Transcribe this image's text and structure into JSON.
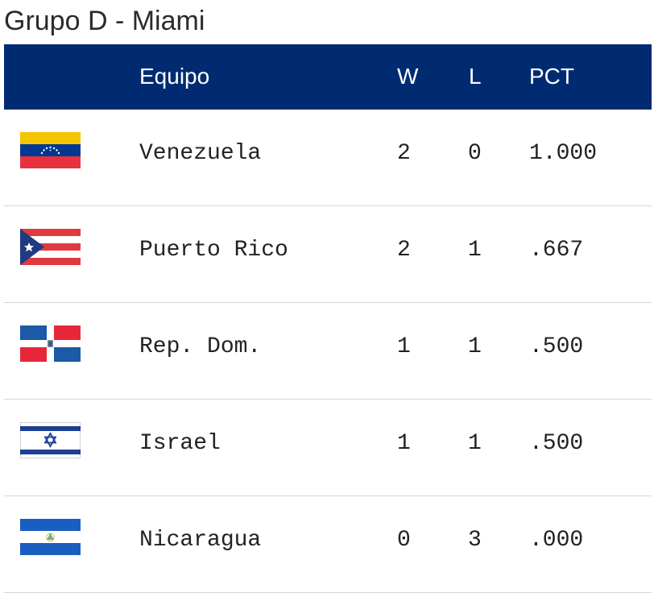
{
  "title": "Grupo D - Miami",
  "colors": {
    "header_bg": "#002b71",
    "header_text": "#ffffff",
    "divider": "#d6d6d6"
  },
  "headers": {
    "team": "Equipo",
    "w": "W",
    "l": "L",
    "pct": "PCT"
  },
  "rows": [
    {
      "flag": "venezuela-flag-icon",
      "team": "Venezuela",
      "w": "2",
      "l": "0",
      "pct": "1.000"
    },
    {
      "flag": "puerto-rico-flag-icon",
      "team": "Puerto Rico",
      "w": "2",
      "l": "1",
      "pct": ".667"
    },
    {
      "flag": "dominican-republic-flag-icon",
      "team": "Rep. Dom.",
      "w": "1",
      "l": "1",
      "pct": ".500"
    },
    {
      "flag": "israel-flag-icon",
      "team": "Israel",
      "w": "1",
      "l": "1",
      "pct": ".500"
    },
    {
      "flag": "nicaragua-flag-icon",
      "team": "Nicaragua",
      "w": "0",
      "l": "3",
      "pct": ".000"
    }
  ]
}
